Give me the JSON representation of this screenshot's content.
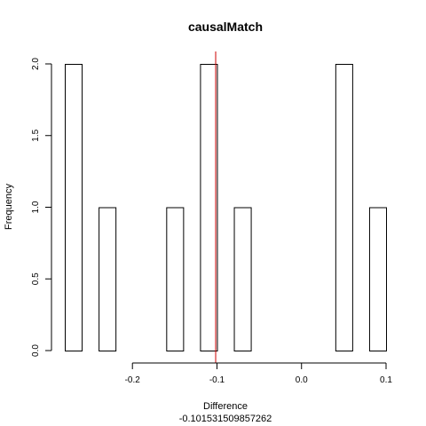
{
  "chart_data": {
    "type": "bar",
    "title": "causalMatch",
    "xlabel": "Difference",
    "ylabel": "Frequency",
    "subtitle": "-0.101531509857262",
    "bin_width": 0.02,
    "bins": [
      {
        "start": -0.28,
        "end": -0.26,
        "count": 2
      },
      {
        "start": -0.26,
        "end": -0.24,
        "count": 0
      },
      {
        "start": -0.24,
        "end": -0.22,
        "count": 1
      },
      {
        "start": -0.22,
        "end": -0.2,
        "count": 0
      },
      {
        "start": -0.2,
        "end": -0.18,
        "count": 0
      },
      {
        "start": -0.18,
        "end": -0.16,
        "count": 0
      },
      {
        "start": -0.16,
        "end": -0.14,
        "count": 1
      },
      {
        "start": -0.14,
        "end": -0.12,
        "count": 0
      },
      {
        "start": -0.12,
        "end": -0.1,
        "count": 2
      },
      {
        "start": -0.1,
        "end": -0.08,
        "count": 0
      },
      {
        "start": -0.08,
        "end": -0.06,
        "count": 1
      },
      {
        "start": -0.06,
        "end": -0.04,
        "count": 0
      },
      {
        "start": -0.04,
        "end": -0.02,
        "count": 0
      },
      {
        "start": -0.02,
        "end": 0.0,
        "count": 0
      },
      {
        "start": 0.0,
        "end": 0.02,
        "count": 0
      },
      {
        "start": 0.02,
        "end": 0.04,
        "count": 0
      },
      {
        "start": 0.04,
        "end": 0.06,
        "count": 2
      },
      {
        "start": 0.06,
        "end": 0.08,
        "count": 0
      },
      {
        "start": 0.08,
        "end": 0.1,
        "count": 1
      }
    ],
    "xticks": [
      -0.2,
      -0.1,
      0.0,
      0.1
    ],
    "xtick_labels": [
      "-0.2",
      "-0.1",
      "0.0",
      "0.1"
    ],
    "yticks": [
      0.0,
      0.5,
      1.0,
      1.5,
      2.0
    ],
    "ytick_labels": [
      "0.0",
      "0.5",
      "1.0",
      "1.5",
      "2.0"
    ],
    "xlim": [
      -0.28,
      0.1
    ],
    "ylim": [
      0,
      2
    ],
    "vline": {
      "x": -0.101531509857262,
      "color": "#cc0000"
    },
    "bar_fill": "#ffffff",
    "bar_stroke": "#000000",
    "grid": false
  }
}
